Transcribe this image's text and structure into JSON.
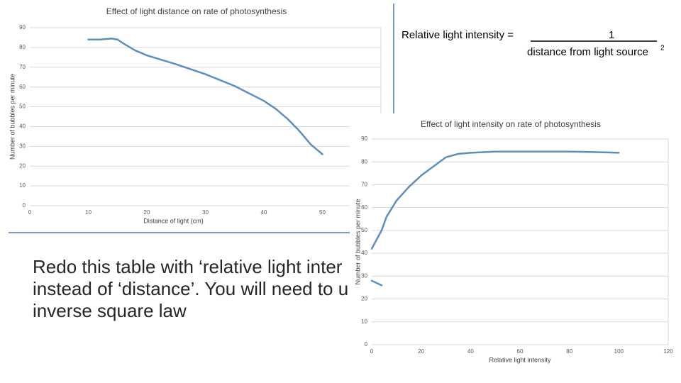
{
  "chart_data": [
    {
      "type": "line",
      "title": "Effect of light distance on rate of photosynthesis",
      "xlabel": "Distance of light (cm)",
      "ylabel": "Number of bubbles per minute",
      "xlim": [
        0,
        60
      ],
      "xticks": [
        0,
        10,
        20,
        30,
        40,
        50
      ],
      "ylim": [
        0,
        90
      ],
      "yticks": [
        0,
        10,
        20,
        30,
        40,
        50,
        60,
        70,
        80,
        90
      ],
      "grid": true,
      "series": [
        {
          "color": "#5b8fbf",
          "x": [
            10,
            12,
            14,
            15,
            16,
            18,
            20,
            25,
            30,
            35,
            40,
            42,
            44,
            46,
            48,
            50
          ],
          "values": [
            84,
            84,
            84.5,
            84,
            82,
            78.5,
            76,
            71.5,
            66.5,
            60.5,
            53,
            49,
            44,
            38,
            31,
            26
          ]
        }
      ]
    },
    {
      "type": "line",
      "title": "Effect of light intensity on rate of photosynthesis",
      "xlabel": "Relative light intensity",
      "ylabel": "Number of bubbles per minute",
      "xlim": [
        0,
        120
      ],
      "xticks": [
        0,
        20,
        40,
        60,
        80,
        100,
        120
      ],
      "ylim": [
        0,
        90
      ],
      "yticks": [
        0,
        10,
        20,
        30,
        40,
        50,
        60,
        70,
        80,
        90
      ],
      "grid": true,
      "series": [
        {
          "color": "#5b8fbf",
          "x": [
            0,
            2,
            4,
            6,
            10,
            15,
            20,
            25,
            30,
            35,
            40,
            50,
            60,
            80,
            90,
            100
          ],
          "values": [
            42,
            46,
            50,
            56,
            63,
            69,
            74,
            78,
            82,
            83.5,
            84,
            84.5,
            84.5,
            84.5,
            84.3,
            84
          ]
        },
        {
          "color": "#5b8fbf",
          "x": [
            0,
            4
          ],
          "values": [
            28,
            26
          ]
        }
      ]
    }
  ],
  "slide": {
    "formula_label": "Relative light intensity =",
    "numerator": "1",
    "denominator": "distance from light source",
    "superscript": "2",
    "body": [
      "Redo this table with ‘relative light inter",
      "instead of ‘distance’. You will need to u",
      "inverse square law"
    ]
  }
}
